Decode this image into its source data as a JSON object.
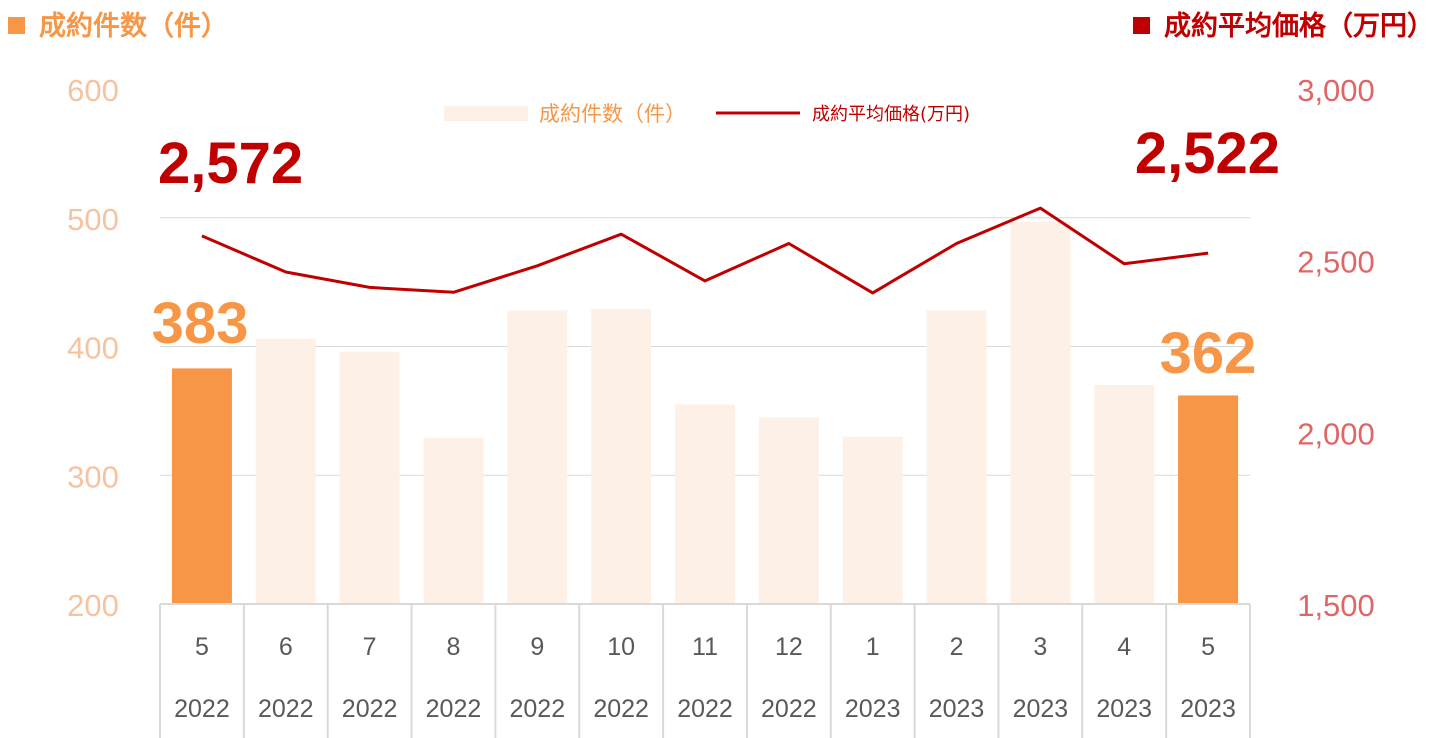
{
  "header": {
    "left_title": "成約件数（件）",
    "right_title": "成約平均価格（万円）"
  },
  "colors": {
    "bar_highlight": "#F79646",
    "bar_normal": "#FDF0E6",
    "line": "#C00000",
    "left_axis_text": "#F6C3A0",
    "right_axis_text": "#E06666",
    "left_title": "#F79646",
    "right_title": "#C00000",
    "grid": "#D9D9D9",
    "category_text": "#595959"
  },
  "legend": {
    "bar_label": "成約件数（件）",
    "line_label": "成約平均価格(万円)"
  },
  "chart_data": {
    "type": "bar",
    "categories": [
      "5",
      "6",
      "7",
      "8",
      "9",
      "10",
      "11",
      "12",
      "1",
      "2",
      "3",
      "4",
      "5"
    ],
    "category_years": [
      "2022",
      "2022",
      "2022",
      "2022",
      "2022",
      "2022",
      "2022",
      "2022",
      "2023",
      "2023",
      "2023",
      "2023",
      "2023"
    ],
    "series": [
      {
        "name": "成約件数（件）",
        "axis": "left",
        "type": "bar",
        "values": [
          383,
          406,
          396,
          329,
          428,
          429,
          355,
          345,
          330,
          428,
          497,
          370,
          362
        ],
        "highlight": [
          true,
          false,
          false,
          false,
          false,
          false,
          false,
          false,
          false,
          false,
          false,
          false,
          true
        ]
      },
      {
        "name": "成約平均価格(万円)",
        "axis": "right",
        "type": "line",
        "values": [
          2572,
          2467,
          2422,
          2408,
          2485,
          2577,
          2441,
          2550,
          2406,
          2550,
          2653,
          2491,
          2522
        ]
      }
    ],
    "left_axis": {
      "min": 200,
      "max": 600,
      "ticks": [
        "200",
        "300",
        "400",
        "500",
        "600"
      ]
    },
    "right_axis": {
      "min": 1500,
      "max": 3000,
      "ticks": [
        "1,500",
        "2,000",
        "2,500",
        "3,000"
      ]
    },
    "annotations": {
      "price_first": "2,572",
      "price_last": "2,522",
      "count_first": "383",
      "count_last": "362"
    },
    "grid": true,
    "legend_position": "top-center"
  }
}
